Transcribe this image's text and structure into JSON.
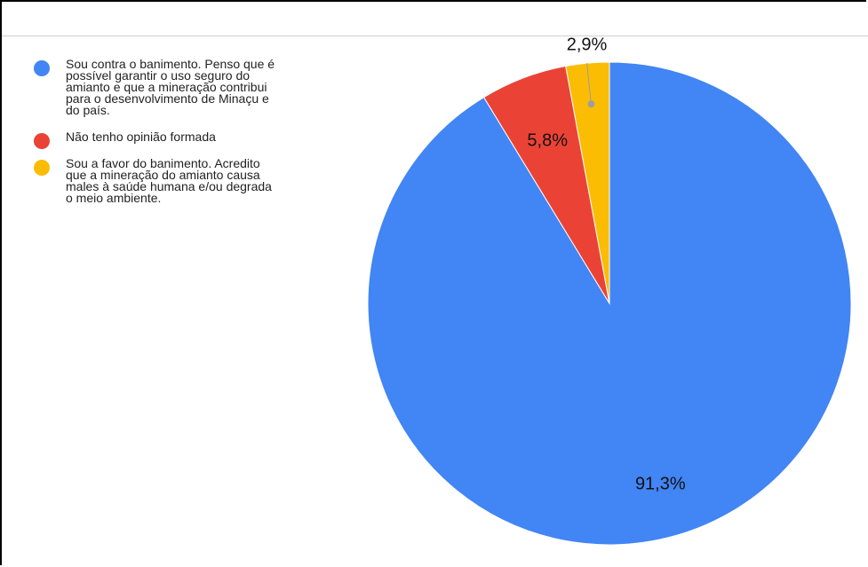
{
  "chart_data": {
    "type": "pie",
    "start": "top",
    "direction": "clockwise",
    "slices": [
      {
        "label": "Sou contra o banimento. Penso que é possível garantir o uso seguro do amianto e que a mineração contribui para o desenvolvimento de Minaçu e do país.",
        "value": 91.3,
        "display": "91,3%",
        "color": "#4285f4"
      },
      {
        "label": "Não tenho opinião formada",
        "value": 5.8,
        "display": "5,8%",
        "color": "#ea4335"
      },
      {
        "label": "Sou a favor do banimento. Acredito que a mineração do amianto causa males à saúde humana e/ou degrada o meio ambiente.",
        "value": 2.9,
        "display": "2,9%",
        "color": "#fbbc04"
      }
    ],
    "legend_position": "left"
  },
  "legend": {
    "items": [
      {
        "line1": "Sou contra o banimento. Penso que é",
        "line2": "possível garantir o uso seguro do",
        "line3": "amianto e que a mineração contribui",
        "line4": "para o desenvolvimento de Minaçu e",
        "line5": "do país."
      },
      {
        "line1": "Não tenho opinião formada"
      },
      {
        "line1": "Sou a favor do banimento. Acredito",
        "line2": "que a mineração do amianto causa",
        "line3": "males à saúde humana e/ou degrada",
        "line4": "o meio ambiente."
      }
    ]
  }
}
